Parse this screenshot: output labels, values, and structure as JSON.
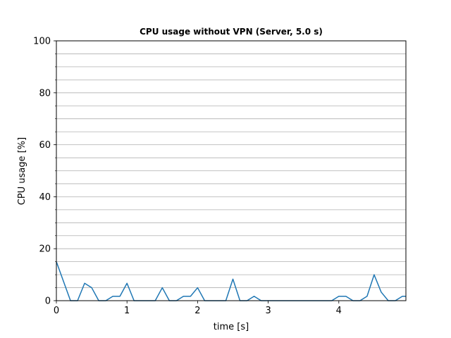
{
  "chart_data": {
    "type": "line",
    "title": "CPU usage without VPN (Server, 5.0 s)",
    "xlabel": "time [s]",
    "ylabel": "CPU usage [%]",
    "xlim": [
      0,
      4.95
    ],
    "ylim": [
      0,
      100
    ],
    "x_ticks": [
      0,
      1,
      2,
      3,
      4
    ],
    "y_ticks": [
      0,
      20,
      40,
      60,
      80,
      100
    ],
    "y_gridlines": [
      0,
      5,
      10,
      15,
      20,
      25,
      30,
      35,
      40,
      45,
      50,
      55,
      60,
      65,
      70,
      75,
      80,
      85,
      90,
      95,
      100
    ],
    "grid": "horizontal",
    "line_color": "#1f77b4",
    "series": [
      {
        "x": [
          0,
          0.1,
          0.2,
          0.3,
          0.4,
          0.5,
          0.6,
          0.7,
          0.8,
          0.9,
          1.0,
          1.1,
          1.2,
          1.3,
          1.4,
          1.5,
          1.6,
          1.7,
          1.8,
          1.9,
          2.0,
          2.1,
          2.2,
          2.3,
          2.4,
          2.5,
          2.6,
          2.7,
          2.8,
          2.9,
          3.0,
          3.1,
          3.2,
          3.3,
          3.4,
          3.5,
          3.6,
          3.7,
          3.8,
          3.9,
          4.0,
          4.1,
          4.2,
          4.3,
          4.4,
          4.5,
          4.6,
          4.7,
          4.8,
          4.9,
          4.95
        ],
        "y": [
          15,
          7.5,
          0,
          0,
          6.7,
          5,
          0,
          0,
          1.7,
          1.7,
          6.7,
          0,
          0,
          0,
          0,
          5,
          0,
          0,
          1.7,
          1.7,
          5,
          0,
          0,
          0,
          0,
          8.3,
          0,
          0,
          1.7,
          0,
          0,
          0,
          0,
          0,
          0,
          0,
          0,
          0,
          0,
          0,
          1.7,
          1.7,
          0,
          0,
          1.7,
          10,
          3.3,
          0,
          0,
          1.7,
          1.7
        ]
      }
    ]
  }
}
